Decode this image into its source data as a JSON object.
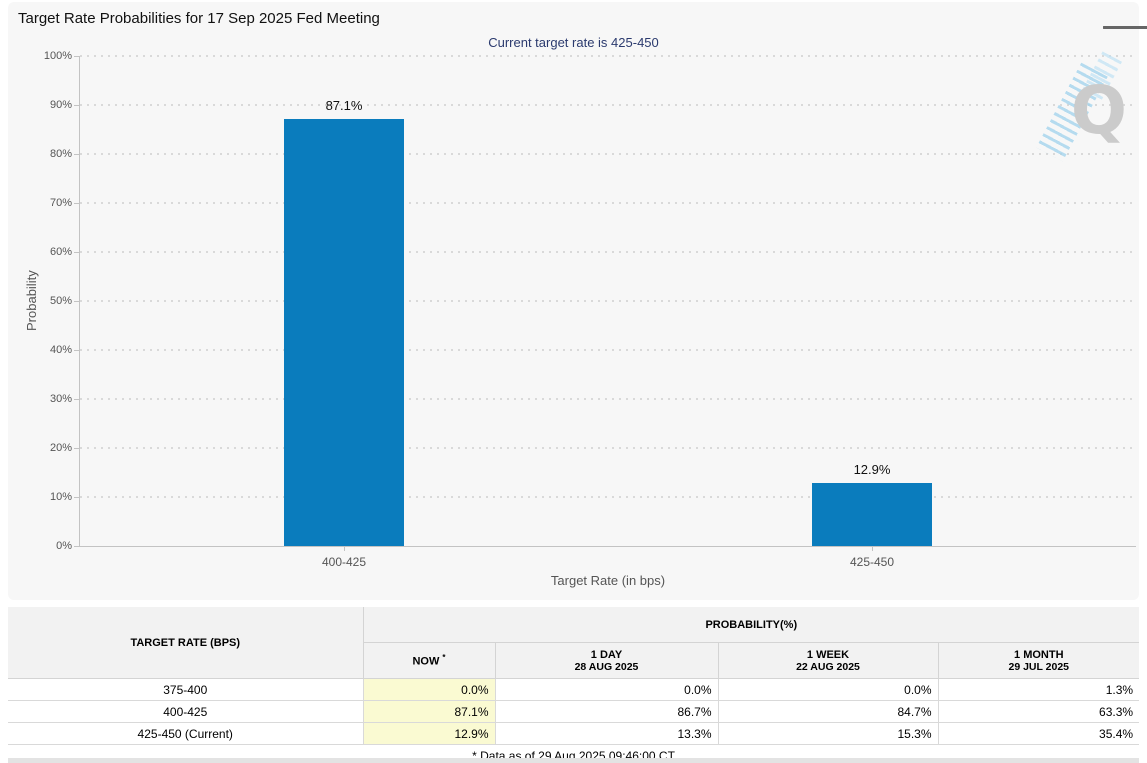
{
  "page": {
    "title": "Target Rate Probabilities for 17 Sep 2025 Fed Meeting",
    "subtitle": "Current target rate is 425-450",
    "subtitle_color": "#2b3a6e"
  },
  "chart_data": {
    "type": "bar",
    "categories": [
      "400-425",
      "425-450"
    ],
    "values": [
      87.1,
      12.9
    ],
    "labels": [
      "87.1%",
      "12.9%"
    ],
    "title": "Target Rate Probabilities for 17 Sep 2025 Fed Meeting",
    "xlabel": "Target Rate (in bps)",
    "ylabel": "Probability",
    "ylim": [
      0,
      100
    ],
    "ytick_step": 10,
    "ytick_suffix": "%",
    "grid": "dotted horizontal",
    "legend": "none",
    "bar_color": "#0a7cbd"
  },
  "watermark": {
    "letter": "Q"
  },
  "table": {
    "col1_header": "TARGET RATE (BPS)",
    "group_header": "PROBABILITY(%)",
    "now_label": "NOW",
    "now_sup": "*",
    "now_highlight": "#fafad2",
    "sub_headers": [
      {
        "line1": "1 DAY",
        "line2": "28 AUG 2025"
      },
      {
        "line1": "1 WEEK",
        "line2": "22 AUG 2025"
      },
      {
        "line1": "1 MONTH",
        "line2": "29 JUL 2025"
      }
    ],
    "rows": [
      {
        "rate": "375-400",
        "now": "0.0%",
        "day": "0.0%",
        "week": "0.0%",
        "month": "1.3%"
      },
      {
        "rate": "400-425",
        "now": "87.1%",
        "day": "86.7%",
        "week": "84.7%",
        "month": "63.3%"
      },
      {
        "rate": "425-450 (Current)",
        "now": "12.9%",
        "day": "13.3%",
        "week": "15.3%",
        "month": "35.4%"
      }
    ],
    "footnote": "* Data as of 29 Aug 2025 09:46:00 CT"
  }
}
